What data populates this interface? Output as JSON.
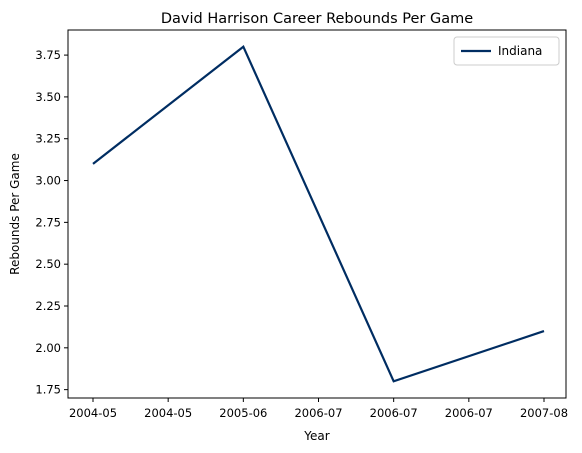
{
  "chart_data": {
    "type": "line",
    "title": "David Harrison  Career Rebounds Per Game",
    "xlabel": "Year",
    "ylabel": "Rebounds Per Game",
    "x_ticks": [
      "2004-05",
      "2004-05",
      "2005-06",
      "2006-07",
      "2006-07",
      "2006-07",
      "2007-08"
    ],
    "x": [
      "2004-05",
      "2005-06",
      "2006-07",
      "2007-08"
    ],
    "series": [
      {
        "name": "Indiana",
        "color": "#002D62",
        "x_positions": [
          0,
          1,
          2,
          3
        ],
        "values": [
          3.1,
          3.8,
          1.8,
          2.1
        ]
      }
    ],
    "ylim": [
      1.7,
      3.9
    ],
    "yticks": [
      1.75,
      2.0,
      2.25,
      2.5,
      2.75,
      3.0,
      3.25,
      3.5,
      3.75
    ],
    "ytick_labels": [
      "1.75",
      "2.00",
      "2.25",
      "2.50",
      "2.75",
      "3.00",
      "3.25",
      "3.50",
      "3.75"
    ],
    "grid": false,
    "legend_position": "top-right"
  }
}
